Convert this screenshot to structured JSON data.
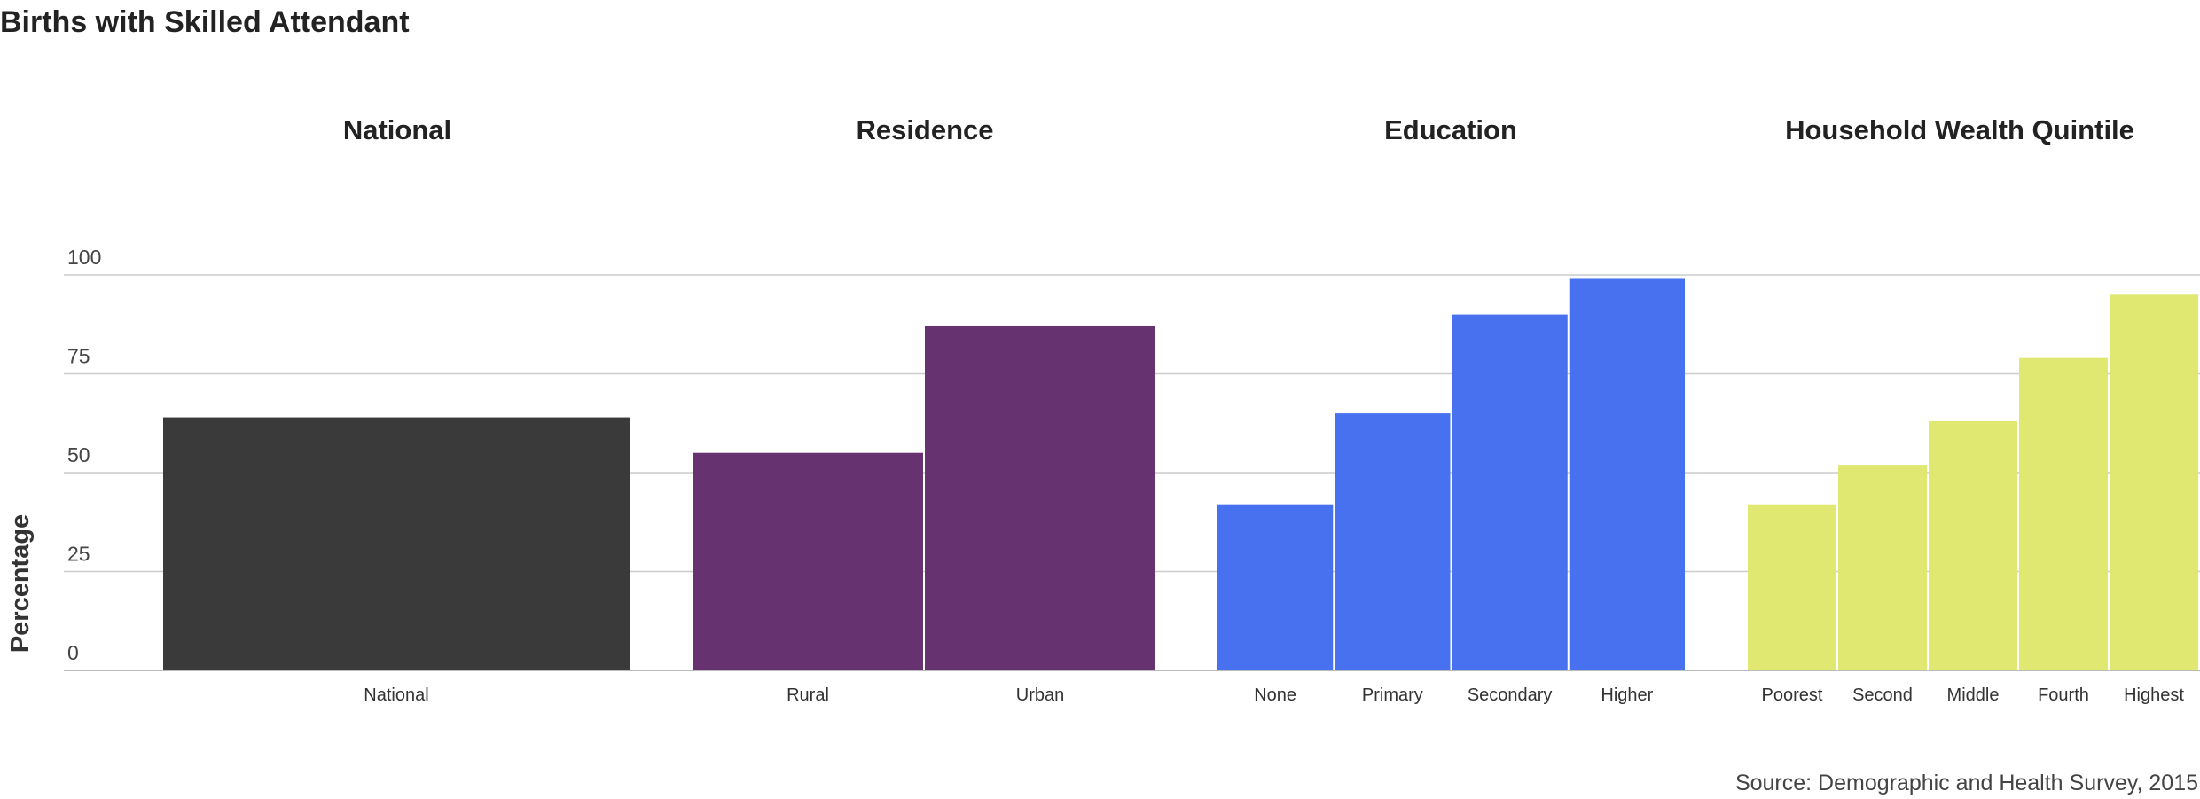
{
  "chart_data": {
    "type": "bar",
    "title": "Births with Skilled Attendant",
    "ylabel": "Percentage",
    "ylim": [
      0,
      100
    ],
    "yticks": [
      0,
      25,
      50,
      75,
      100
    ],
    "grid": true,
    "source": "Source: Demographic and Health Survey, 2015",
    "groups": [
      {
        "name": "National",
        "color": "#3a3a3a",
        "categories": [
          "National"
        ],
        "values": [
          64
        ]
      },
      {
        "name": "Residence",
        "color": "#663370",
        "categories": [
          "Rural",
          "Urban"
        ],
        "values": [
          55,
          87
        ]
      },
      {
        "name": "Education",
        "color": "#4771ef",
        "categories": [
          "None",
          "Primary",
          "Secondary",
          "Higher"
        ],
        "values": [
          42,
          65,
          90,
          99
        ]
      },
      {
        "name": "Household Wealth Quintile",
        "color": "#e0e872",
        "categories": [
          "Poorest",
          "Second",
          "Middle",
          "Fourth",
          "Highest"
        ],
        "values": [
          42,
          52,
          63,
          79,
          95
        ]
      }
    ]
  }
}
